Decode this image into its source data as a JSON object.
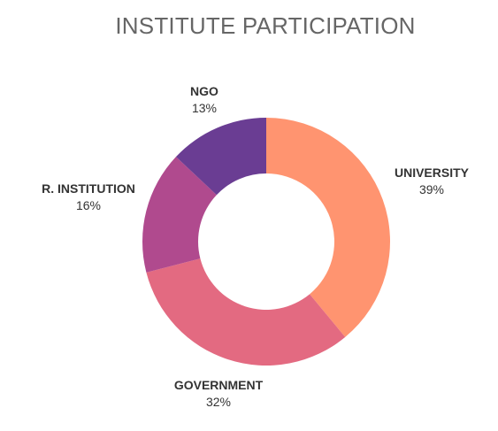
{
  "chart_data": {
    "type": "pie",
    "style": "donut",
    "title": "INSTITUTE PARTICIPATION",
    "categories": [
      "UNIVERSITY",
      "GOVERNMENT",
      "R. INSTITUTION",
      "NGO"
    ],
    "values": [
      39,
      32,
      16,
      13
    ],
    "value_labels": [
      "39%",
      "32%",
      "16%",
      "13%"
    ],
    "colors": [
      "#ff9470",
      "#e36a81",
      "#b04a8e",
      "#6a3d93"
    ],
    "start_angle_deg": 0,
    "direction": "clockwise",
    "legend": "none"
  }
}
